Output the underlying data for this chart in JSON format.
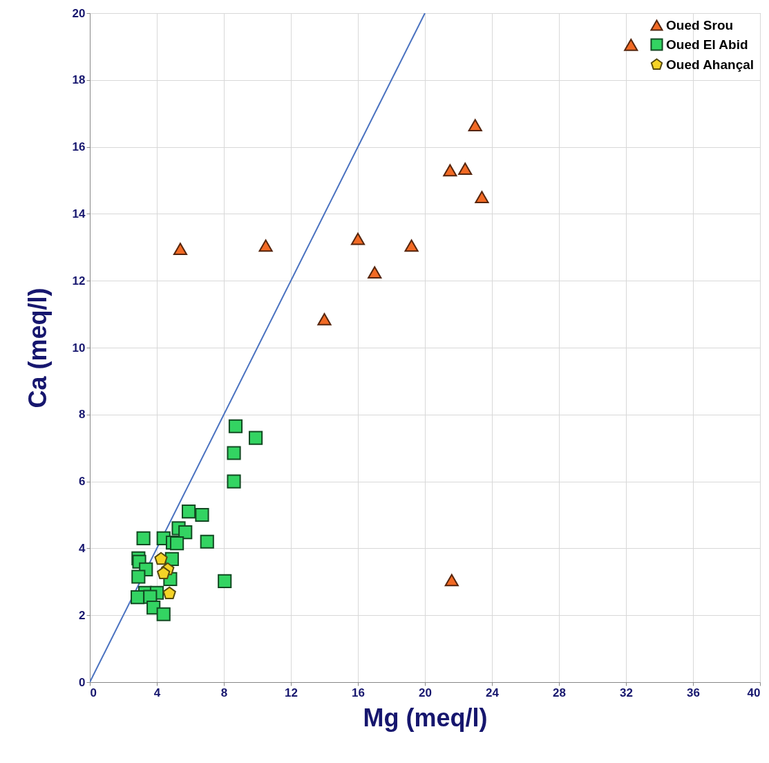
{
  "chart_data": {
    "type": "scatter",
    "xlabel": "Mg (meq/l)",
    "ylabel": "Ca (meq/l)",
    "xlim": [
      0,
      40
    ],
    "xticks": [
      0,
      4,
      8,
      12,
      16,
      20,
      24,
      28,
      32,
      36,
      40
    ],
    "ylim": [
      0,
      20
    ],
    "yticks": [
      0,
      2,
      4,
      6,
      8,
      10,
      12,
      14,
      16,
      18,
      20
    ],
    "grid": true,
    "legend": "top right",
    "series": [
      {
        "name": "Oued Srou",
        "color": "#f26a24",
        "marker": "triangle",
        "x": [
          5.4,
          10.5,
          14.0,
          16.0,
          17.0,
          19.2,
          21.5,
          22.4,
          23.0,
          23.4,
          32.3,
          21.6
        ],
        "values": [
          12.95,
          13.05,
          10.85,
          13.25,
          12.25,
          13.05,
          15.3,
          15.35,
          16.65,
          14.5,
          19.05,
          3.05
        ]
      },
      {
        "name": "Oued El Abid",
        "color": "#33d462",
        "marker": "square",
        "x": [
          8.7,
          9.9,
          8.6,
          8.6,
          5.9,
          6.7,
          5.3,
          5.7,
          3.2,
          4.4,
          4.95,
          5.2,
          7.0,
          2.9,
          2.95,
          3.35,
          2.9,
          4.9,
          4.8,
          3.3,
          4.0,
          2.85,
          3.6,
          3.8,
          4.4,
          8.05
        ],
        "values": [
          7.65,
          7.3,
          6.85,
          6.0,
          5.1,
          5.0,
          4.6,
          4.48,
          4.3,
          4.3,
          4.17,
          4.15,
          4.2,
          3.7,
          3.6,
          3.37,
          3.15,
          3.68,
          3.08,
          2.67,
          2.67,
          2.54,
          2.55,
          2.23,
          2.03,
          3.02
        ]
      },
      {
        "name": "Oued Ahançal",
        "color": "#f5d327",
        "x": [
          4.25,
          4.65,
          4.4,
          4.75
        ],
        "values": [
          3.68,
          3.37,
          3.25,
          2.65
        ]
      },
      {
        "type": "line",
        "color": "#4a72c0",
        "x": [
          0,
          20
        ],
        "values": [
          0,
          20
        ]
      }
    ]
  }
}
